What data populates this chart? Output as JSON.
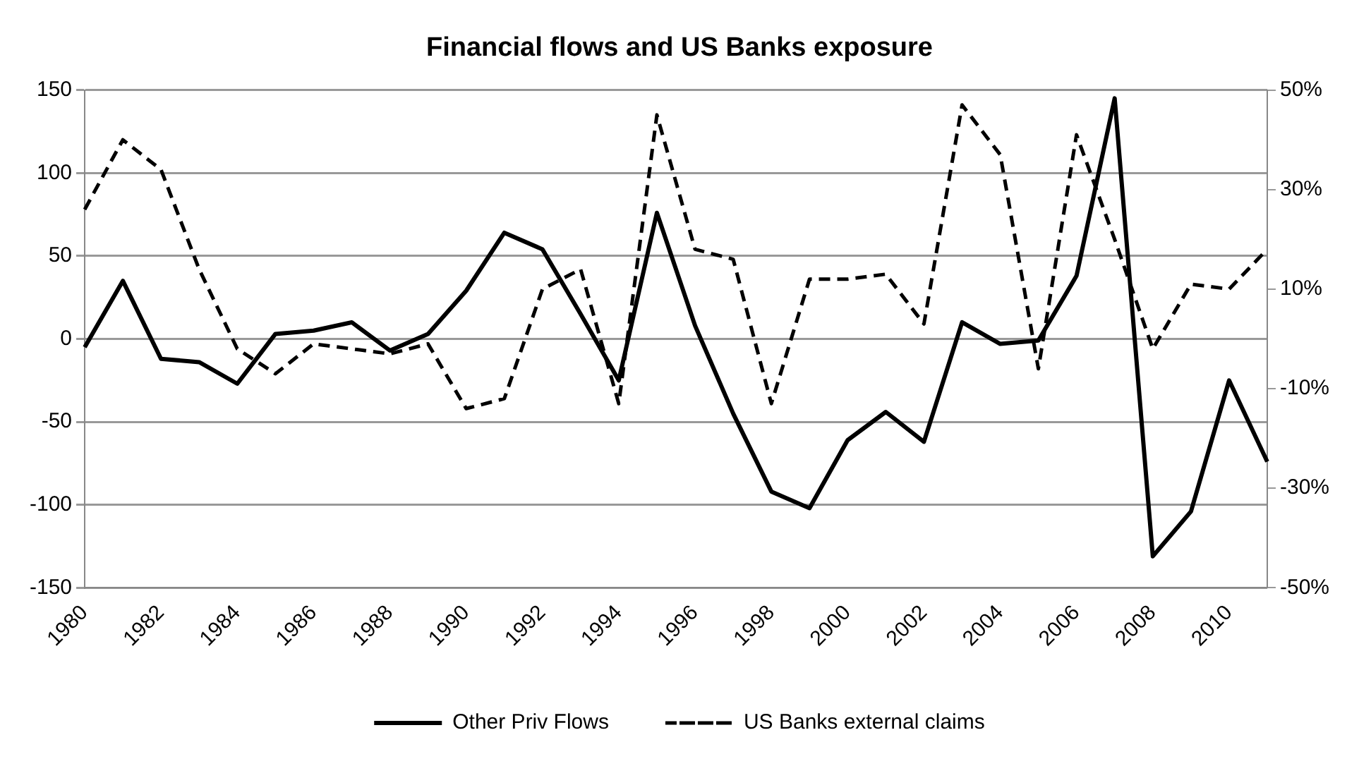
{
  "chart_data": {
    "type": "line",
    "title": "Financial flows and US Banks exposure",
    "categories": [
      "1980",
      null,
      "1982",
      null,
      "1984",
      null,
      "1986",
      null,
      "1988",
      null,
      "1990",
      null,
      "1992",
      null,
      "1994",
      null,
      "1996",
      null,
      "1998",
      null,
      "2000",
      null,
      "2002",
      null,
      "2004",
      null,
      "2006",
      null,
      "2008",
      null,
      "2010",
      null
    ],
    "series": [
      {
        "name": "Other Priv Flows",
        "color": "#000000",
        "line_style": "solid",
        "values": [
          -5,
          35,
          -12,
          -14,
          -27,
          3,
          5,
          10,
          -7,
          3,
          29,
          64,
          54,
          15,
          -25,
          76,
          8,
          -45,
          -92,
          -102,
          -61,
          -44,
          -62,
          10,
          -3,
          -1,
          38,
          145,
          -131,
          -104,
          -25,
          -74
        ]
      },
      {
        "name": "US Banks external claims",
        "color": "#000000",
        "line_style": "dashed",
        "axis": "y2",
        "values": [
          26,
          40,
          34,
          14,
          -2,
          -7,
          -1,
          -2,
          -3,
          -1,
          -14,
          -12,
          10,
          14,
          -13,
          45,
          18,
          16,
          -13,
          12,
          12,
          13,
          3,
          47,
          37,
          -6,
          41,
          20,
          -2,
          11,
          10,
          18
        ]
      }
    ],
    "ylim": [
      -150,
      150
    ],
    "yticks": [
      -150,
      -100,
      -50,
      0,
      50,
      100,
      150
    ],
    "y2lim": [
      -50,
      50
    ],
    "y2ticks": [
      {
        "value": -50,
        "label": "-50%"
      },
      {
        "value": -30,
        "label": "-30%"
      },
      {
        "value": -10,
        "label": "-10%"
      },
      {
        "value": 10,
        "label": "10%"
      },
      {
        "value": 30,
        "label": "30%"
      },
      {
        "value": 50,
        "label": "50%"
      }
    ],
    "grid": "y",
    "legend": "bottom",
    "marker": "none"
  }
}
